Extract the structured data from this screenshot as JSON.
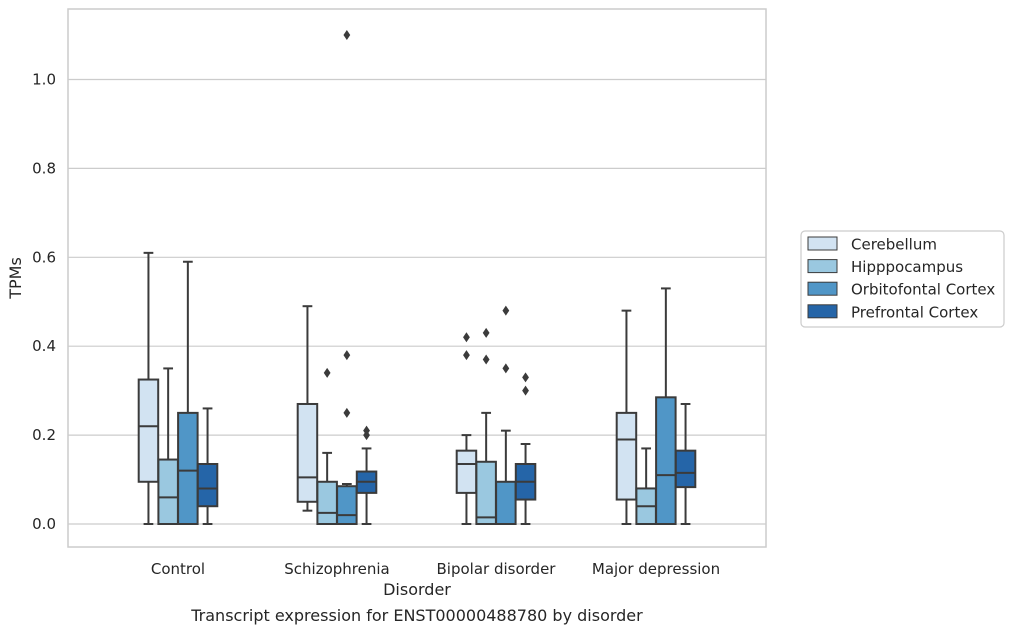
{
  "caption": "Transcript expression for ENST00000488780 by disorder",
  "chart_data": {
    "type": "box",
    "xlabel": "Disorder",
    "ylabel": "TPMs",
    "ylim": [
      -0.05,
      1.16
    ],
    "yticks": [
      0.0,
      0.2,
      0.4,
      0.6,
      0.8,
      1.0
    ],
    "ytick_labels": [
      "0.0",
      "0.2",
      "0.4",
      "0.6",
      "0.8",
      "1.0"
    ],
    "grid": "horizontal",
    "legend_position": "right",
    "categories": [
      "Control",
      "Schizophrenia",
      "Bipolar disorder",
      "Major depression"
    ],
    "series": [
      {
        "name": "Cerebellum",
        "color": "#d2e3f2",
        "boxes": [
          {
            "whislo": 0.0,
            "q1": 0.095,
            "med": 0.22,
            "q3": 0.325,
            "whishi": 0.61,
            "fliers": []
          },
          {
            "whislo": 0.03,
            "q1": 0.05,
            "med": 0.105,
            "q3": 0.27,
            "whishi": 0.49,
            "fliers": []
          },
          {
            "whislo": 0.0,
            "q1": 0.07,
            "med": 0.135,
            "q3": 0.165,
            "whishi": 0.2,
            "fliers": [
              0.38,
              0.42
            ]
          },
          {
            "whislo": 0.0,
            "q1": 0.055,
            "med": 0.19,
            "q3": 0.25,
            "whishi": 0.48,
            "fliers": []
          }
        ]
      },
      {
        "name": "Hipppocampus",
        "color": "#9ac8e0",
        "boxes": [
          {
            "whislo": 0.0,
            "q1": 0.0,
            "med": 0.06,
            "q3": 0.145,
            "whishi": 0.35,
            "fliers": []
          },
          {
            "whislo": 0.0,
            "q1": 0.0,
            "med": 0.025,
            "q3": 0.095,
            "whishi": 0.16,
            "fliers": [
              0.34
            ]
          },
          {
            "whislo": 0.0,
            "q1": 0.0,
            "med": 0.015,
            "q3": 0.14,
            "whishi": 0.25,
            "fliers": [
              0.37,
              0.43
            ]
          },
          {
            "whislo": 0.0,
            "q1": 0.0,
            "med": 0.04,
            "q3": 0.08,
            "whishi": 0.17,
            "fliers": []
          }
        ]
      },
      {
        "name": "Orbitofontal Cortex",
        "color": "#5096c7",
        "boxes": [
          {
            "whislo": 0.0,
            "q1": 0.0,
            "med": 0.12,
            "q3": 0.25,
            "whishi": 0.59,
            "fliers": []
          },
          {
            "whislo": 0.0,
            "q1": 0.0,
            "med": 0.02,
            "q3": 0.085,
            "whishi": 0.09,
            "fliers": [
              0.25,
              0.38,
              1.1
            ]
          },
          {
            "whislo": 0.0,
            "q1": 0.0,
            "med": 0.0,
            "q3": 0.095,
            "whishi": 0.21,
            "fliers": [
              0.35,
              0.48
            ]
          },
          {
            "whislo": 0.0,
            "q1": 0.0,
            "med": 0.11,
            "q3": 0.285,
            "whishi": 0.53,
            "fliers": []
          }
        ]
      },
      {
        "name": "Prefrontal Cortex",
        "color": "#2565a8",
        "boxes": [
          {
            "whislo": 0.0,
            "q1": 0.04,
            "med": 0.08,
            "q3": 0.135,
            "whishi": 0.26,
            "fliers": []
          },
          {
            "whislo": 0.0,
            "q1": 0.07,
            "med": 0.095,
            "q3": 0.118,
            "whishi": 0.17,
            "fliers": [
              0.2,
              0.21
            ]
          },
          {
            "whislo": 0.0,
            "q1": 0.055,
            "med": 0.095,
            "q3": 0.135,
            "whishi": 0.18,
            "fliers": [
              0.3,
              0.33
            ]
          },
          {
            "whislo": 0.0,
            "q1": 0.083,
            "med": 0.115,
            "q3": 0.165,
            "whishi": 0.27,
            "fliers": []
          }
        ]
      }
    ]
  }
}
